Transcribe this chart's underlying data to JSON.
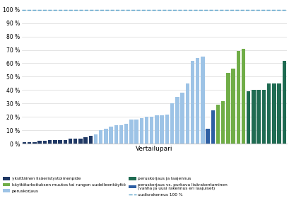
{
  "title": "",
  "xlabel": "Vertailupari",
  "ylabel": "",
  "ylim": [
    0,
    105
  ],
  "yticks": [
    0,
    10,
    20,
    30,
    40,
    50,
    60,
    70,
    80,
    90,
    100
  ],
  "ytick_labels": [
    "0 %",
    "10 %",
    "20 %",
    "30 %",
    "40 %",
    "50 %",
    "60 %",
    "70 %",
    "80 %",
    "90 %",
    "100 %"
  ],
  "hline_100": 100,
  "colors": {
    "dark_navy": "#1f3864",
    "light_blue": "#9dc3e6",
    "medium_blue": "#2e5fa3",
    "light_green": "#70ad47",
    "dark_teal": "#1f6b52",
    "dashed_line": "#5ba3c9"
  },
  "bars": [
    {
      "value": 1,
      "color": "dark_navy"
    },
    {
      "value": 1,
      "color": "dark_navy"
    },
    {
      "value": 1,
      "color": "dark_navy"
    },
    {
      "value": 2,
      "color": "dark_navy"
    },
    {
      "value": 2,
      "color": "dark_navy"
    },
    {
      "value": 3,
      "color": "dark_navy"
    },
    {
      "value": 3,
      "color": "dark_navy"
    },
    {
      "value": 3,
      "color": "dark_navy"
    },
    {
      "value": 3,
      "color": "dark_navy"
    },
    {
      "value": 4,
      "color": "dark_navy"
    },
    {
      "value": 4,
      "color": "dark_navy"
    },
    {
      "value": 4,
      "color": "dark_navy"
    },
    {
      "value": 5,
      "color": "dark_navy"
    },
    {
      "value": 6,
      "color": "dark_navy"
    },
    {
      "value": 7,
      "color": "light_blue"
    },
    {
      "value": 10,
      "color": "light_blue"
    },
    {
      "value": 11,
      "color": "light_blue"
    },
    {
      "value": 13,
      "color": "light_blue"
    },
    {
      "value": 14,
      "color": "light_blue"
    },
    {
      "value": 14,
      "color": "light_blue"
    },
    {
      "value": 15,
      "color": "light_blue"
    },
    {
      "value": 18,
      "color": "light_blue"
    },
    {
      "value": 18,
      "color": "light_blue"
    },
    {
      "value": 19,
      "color": "light_blue"
    },
    {
      "value": 20,
      "color": "light_blue"
    },
    {
      "value": 20,
      "color": "light_blue"
    },
    {
      "value": 21,
      "color": "light_blue"
    },
    {
      "value": 21,
      "color": "light_blue"
    },
    {
      "value": 22,
      "color": "light_blue"
    },
    {
      "value": 30,
      "color": "light_blue"
    },
    {
      "value": 35,
      "color": "light_blue"
    },
    {
      "value": 38,
      "color": "light_blue"
    },
    {
      "value": 45,
      "color": "light_blue"
    },
    {
      "value": 62,
      "color": "light_blue"
    },
    {
      "value": 64,
      "color": "light_blue"
    },
    {
      "value": 65,
      "color": "light_blue"
    },
    {
      "value": 11,
      "color": "medium_blue"
    },
    {
      "value": 25,
      "color": "medium_blue"
    },
    {
      "value": 29,
      "color": "light_green"
    },
    {
      "value": 32,
      "color": "light_green"
    },
    {
      "value": 53,
      "color": "light_green"
    },
    {
      "value": 56,
      "color": "light_green"
    },
    {
      "value": 69,
      "color": "light_green"
    },
    {
      "value": 71,
      "color": "light_green"
    },
    {
      "value": 39,
      "color": "dark_teal"
    },
    {
      "value": 40,
      "color": "dark_teal"
    },
    {
      "value": 40,
      "color": "dark_teal"
    },
    {
      "value": 40,
      "color": "dark_teal"
    },
    {
      "value": 45,
      "color": "dark_teal"
    },
    {
      "value": 45,
      "color": "dark_teal"
    },
    {
      "value": 45,
      "color": "dark_teal"
    },
    {
      "value": 62,
      "color": "dark_teal"
    }
  ],
  "legend": [
    {
      "label": "yksittäinen lisäeristystoimenpide",
      "color": "dark_navy",
      "style": "bar"
    },
    {
      "label": "käyttötarkoituksen muutos tai rungon uudelleenkäyttö",
      "color": "light_green",
      "style": "bar"
    },
    {
      "label": "peruskorjaus",
      "color": "light_blue",
      "style": "bar"
    },
    {
      "label": "peruskorjaus ja laajennus",
      "color": "dark_teal",
      "style": "bar"
    },
    {
      "label": "peruskorjaus vs. purkava lisärakentaminen\n(vanha ja uusi rakennus eri laajuiset)",
      "color": "medium_blue",
      "style": "bar"
    },
    {
      "label": "uudisrakennus 100 %",
      "color": "dashed_line",
      "style": "dashed"
    }
  ],
  "background_color": "#ffffff",
  "grid_color": "#d9d9d9"
}
